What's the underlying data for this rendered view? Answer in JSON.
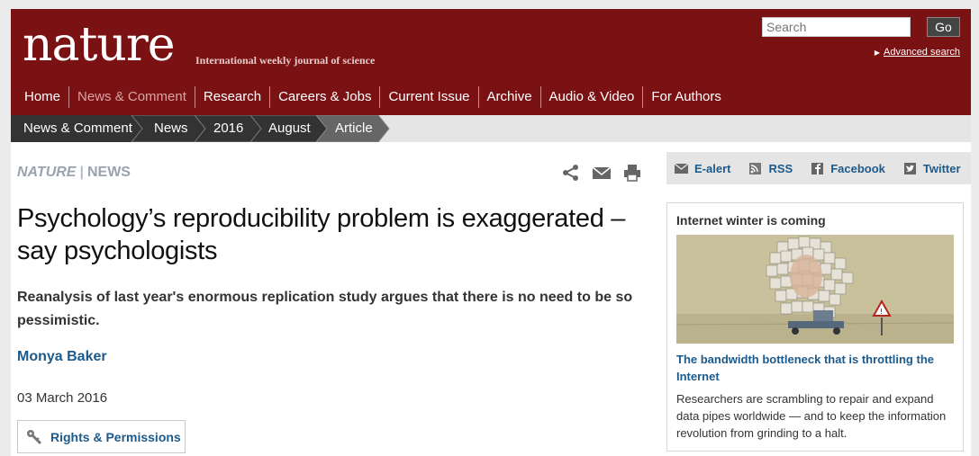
{
  "header": {
    "logo": "nature",
    "tagline": "International weekly journal of science",
    "search_placeholder": "Search",
    "go_label": "Go",
    "advanced_search": "Advanced search"
  },
  "nav": {
    "items": [
      "Home",
      "News & Comment",
      "Research",
      "Careers & Jobs",
      "Current Issue",
      "Archive",
      "Audio & Video",
      "For Authors"
    ],
    "active": "News & Comment"
  },
  "breadcrumb": [
    "News & Comment",
    "News",
    "2016",
    "August",
    "Article"
  ],
  "article": {
    "journal": "NATURE",
    "section": "NEWS",
    "headline": "Psychology’s reproducibility problem is exaggerated – say psychologists",
    "standfirst": "Reanalysis of last year's enormous replication study argues that there is no need to be so pessimistic.",
    "author": "Monya Baker",
    "date": "03 March 2016",
    "rights_label": "Rights & Permissions",
    "tools": [
      "share-icon",
      "email-icon",
      "print-icon"
    ]
  },
  "social": [
    {
      "label": "E-alert",
      "icon": "email-icon"
    },
    {
      "label": "RSS",
      "icon": "rss-icon"
    },
    {
      "label": "Facebook",
      "icon": "facebook-icon"
    },
    {
      "label": "Twitter",
      "icon": "twitter-icon"
    }
  ],
  "promo": {
    "title": "Internet winter is coming",
    "link": "The bandwidth bottleneck that is throttling the Internet",
    "description": "Researchers are scrambling to repair and expand data pipes worldwide — and to keep the information revolution from grinding to a halt."
  },
  "colors": {
    "masthead": "#7a1113",
    "link": "#1c5a8c",
    "crumb_dark": "#333333",
    "crumb_active": "#666666"
  }
}
